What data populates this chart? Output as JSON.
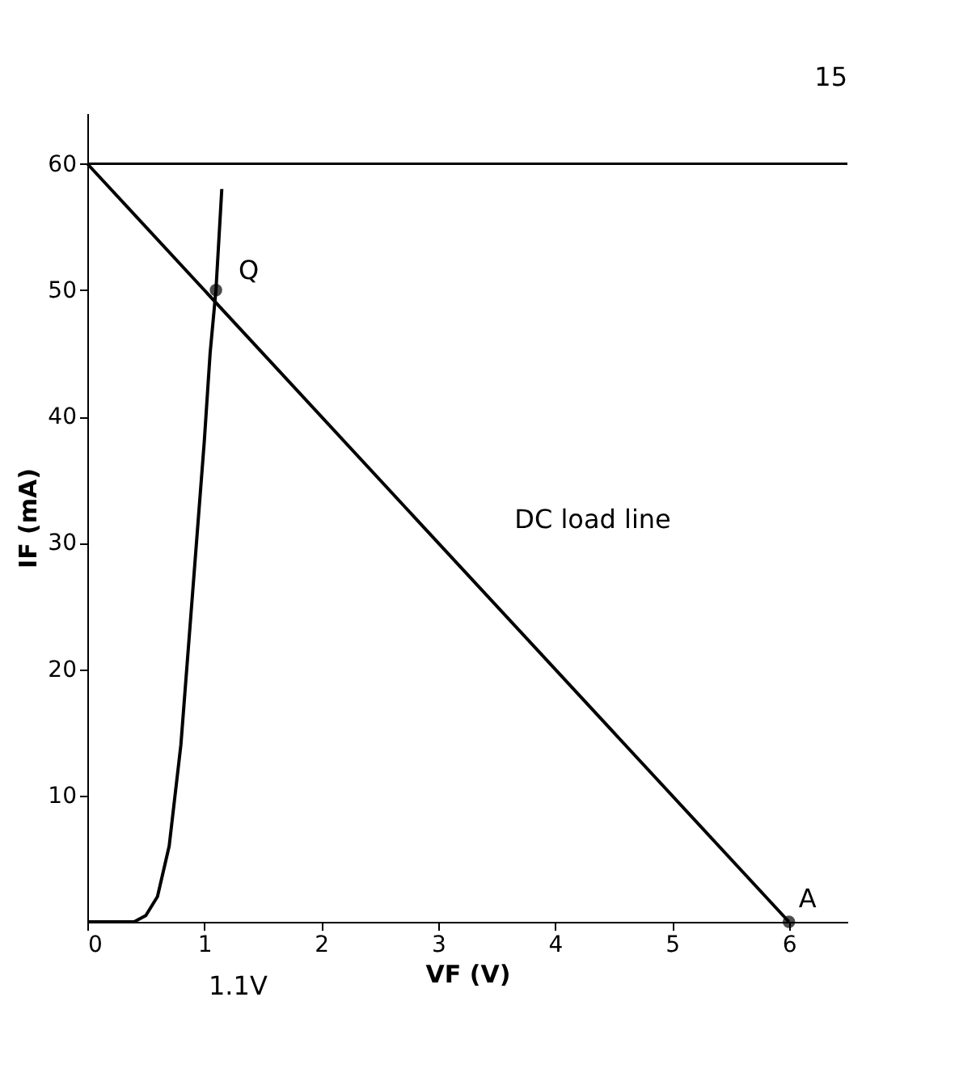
{
  "chart_data": {
    "type": "line",
    "xlabel": "VF (V)",
    "ylabel": "IF (mA)",
    "xlim": [
      0,
      6.5
    ],
    "ylim": [
      0,
      64
    ],
    "xticks": [
      0,
      1,
      2,
      3,
      4,
      5,
      6
    ],
    "yticks": [
      10,
      20,
      30,
      40,
      50,
      60
    ],
    "grid": false,
    "marker": "none",
    "line_style": "solid",
    "series": [
      {
        "color": "#000000",
        "x": [
          0,
          0.4,
          0.5,
          0.6,
          0.7,
          0.8,
          0.9,
          1.0,
          1.05,
          1.1,
          1.15
        ],
        "values": [
          0,
          0,
          0.5,
          2,
          6,
          14,
          26,
          38,
          45,
          50,
          58
        ]
      },
      {
        "color": "#000000",
        "x": [
          0,
          6
        ],
        "values": [
          60,
          0
        ]
      },
      {
        "type": "scatter",
        "marker": "circle",
        "color": "#000000",
        "x": [
          1.1,
          6
        ],
        "values": [
          50,
          0
        ]
      }
    ],
    "ref_lines": [
      {
        "axis": "y",
        "value": 60,
        "label": null,
        "color": "#000000"
      }
    ],
    "annotations": [
      {
        "text": "Q",
        "x": 1.1,
        "y": 50
      },
      {
        "text": "A",
        "x": 6,
        "y": 0
      },
      {
        "text": "DC load line",
        "x": 3.1,
        "y": 30
      },
      "1.1V",
      "15"
    ]
  }
}
